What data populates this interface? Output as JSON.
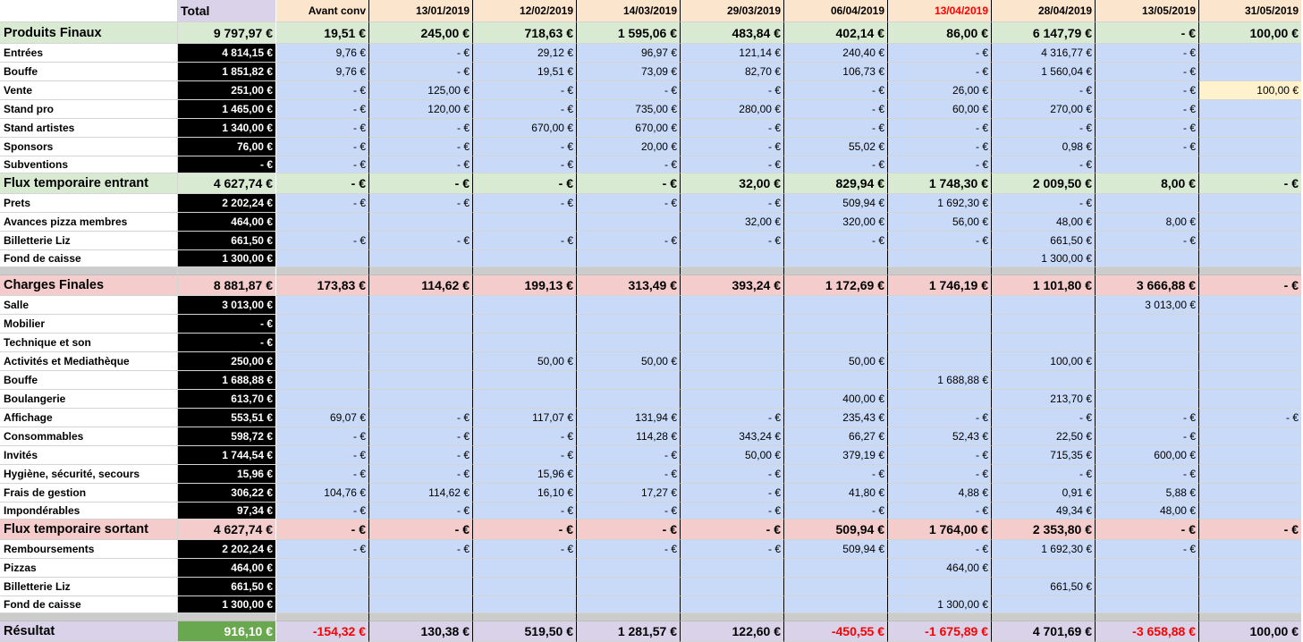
{
  "header": {
    "total_label": "Total",
    "columns": [
      "Avant conv",
      "13/01/2019",
      "12/02/2019",
      "14/03/2019",
      "29/03/2019",
      "06/04/2019",
      "13/04/2019",
      "28/04/2019",
      "13/05/2019",
      "31/05/2019"
    ]
  },
  "rows": [
    {
      "label": "Produits Finaux",
      "total": "9 797,97 €",
      "values": [
        "19,51 €",
        "245,00 €",
        "718,63 €",
        "1 595,06 €",
        "483,84 €",
        "402,14 €",
        "86,00 €",
        "6 147,79 €",
        "- €",
        "100,00 €"
      ]
    },
    {
      "label": "Entrées",
      "total": "4 814,15 €",
      "values": [
        "9,76 €",
        "- €",
        "29,12 €",
        "96,97 €",
        "121,14 €",
        "240,40 €",
        "- €",
        "4 316,77 €",
        "- €",
        ""
      ]
    },
    {
      "label": "Bouffe",
      "total": "1 851,82 €",
      "values": [
        "9,76 €",
        "- €",
        "19,51 €",
        "73,09 €",
        "82,70 €",
        "106,73 €",
        "- €",
        "1 560,04 €",
        "- €",
        ""
      ]
    },
    {
      "label": "Vente",
      "total": "251,00 €",
      "values": [
        "- €",
        "125,00 €",
        "- €",
        "- €",
        "- €",
        "- €",
        "26,00 €",
        "- €",
        "- €",
        "100,00 €"
      ]
    },
    {
      "label": "Stand pro",
      "total": "1 465,00 €",
      "values": [
        "- €",
        "120,00 €",
        "- €",
        "735,00 €",
        "280,00 €",
        "- €",
        "60,00 €",
        "270,00 €",
        "- €",
        ""
      ]
    },
    {
      "label": "Stand artistes",
      "total": "1 340,00 €",
      "values": [
        "- €",
        "- €",
        "670,00 €",
        "670,00 €",
        "- €",
        "- €",
        "- €",
        "- €",
        "- €",
        ""
      ]
    },
    {
      "label": "Sponsors",
      "total": "76,00 €",
      "values": [
        "- €",
        "- €",
        "- €",
        "20,00 €",
        "- €",
        "55,02 €",
        "- €",
        "0,98 €",
        "- €",
        ""
      ]
    },
    {
      "label": "Subventions",
      "total": "- €",
      "values": [
        "- €",
        "- €",
        "- €",
        "- €",
        "- €",
        "- €",
        "- €",
        "- €",
        "",
        ""
      ]
    },
    {
      "label": "Flux temporaire entrant",
      "total": "4 627,74 €",
      "values": [
        "- €",
        "- €",
        "- €",
        "- €",
        "32,00 €",
        "829,94 €",
        "1 748,30 €",
        "2 009,50 €",
        "8,00 €",
        "- €"
      ]
    },
    {
      "label": "Prets",
      "total": "2 202,24 €",
      "values": [
        "- €",
        "- €",
        "- €",
        "- €",
        "- €",
        "509,94 €",
        "1 692,30 €",
        "- €",
        "",
        ""
      ]
    },
    {
      "label": "Avances pizza membres",
      "total": "464,00 €",
      "values": [
        "",
        "",
        "",
        "",
        "32,00 €",
        "320,00 €",
        "56,00 €",
        "48,00 €",
        "8,00 €",
        ""
      ]
    },
    {
      "label": "Billetterie Liz",
      "total": "661,50 €",
      "values": [
        "- €",
        "- €",
        "- €",
        "- €",
        "- €",
        "- €",
        "- €",
        "661,50 €",
        "- €",
        ""
      ]
    },
    {
      "label": "Fond de caisse",
      "total": "1 300,00 €",
      "values": [
        "",
        "",
        "",
        "",
        "",
        "",
        "",
        "1 300,00 €",
        "",
        ""
      ]
    },
    {
      "label": "",
      "total": "",
      "values": [
        "",
        "",
        "",
        "",
        "",
        "",
        "",
        "",
        "",
        ""
      ]
    },
    {
      "label": "Charges Finales",
      "total": "8 881,87 €",
      "values": [
        "173,83 €",
        "114,62 €",
        "199,13 €",
        "313,49 €",
        "393,24 €",
        "1 172,69 €",
        "1 746,19 €",
        "1 101,80 €",
        "3 666,88 €",
        "- €"
      ]
    },
    {
      "label": "Salle",
      "total": "3 013,00 €",
      "values": [
        "",
        "",
        "",
        "",
        "",
        "",
        "",
        "",
        "3 013,00 €",
        ""
      ]
    },
    {
      "label": "Mobilier",
      "total": "- €",
      "values": [
        "",
        "",
        "",
        "",
        "",
        "",
        "",
        "",
        "",
        ""
      ]
    },
    {
      "label": "Technique et son",
      "total": "- €",
      "values": [
        "",
        "",
        "",
        "",
        "",
        "",
        "",
        "",
        "",
        ""
      ]
    },
    {
      "label": "Activités et Mediathèque",
      "total": "250,00 €",
      "values": [
        "",
        "",
        "50,00 €",
        "50,00 €",
        "",
        "50,00 €",
        "",
        "100,00 €",
        "",
        ""
      ]
    },
    {
      "label": "Bouffe",
      "total": "1 688,88 €",
      "values": [
        "",
        "",
        "",
        "",
        "",
        "",
        "1 688,88 €",
        "",
        "",
        ""
      ]
    },
    {
      "label": "Boulangerie",
      "total": "613,70 €",
      "values": [
        "",
        "",
        "",
        "",
        "",
        "400,00 €",
        "",
        "213,70 €",
        "",
        ""
      ]
    },
    {
      "label": "Affichage",
      "total": "553,51 €",
      "values": [
        "69,07 €",
        "- €",
        "117,07 €",
        "131,94 €",
        "- €",
        "235,43 €",
        "- €",
        "- €",
        "- €",
        "- €"
      ]
    },
    {
      "label": "Consommables",
      "total": "598,72 €",
      "values": [
        "- €",
        "- €",
        "- €",
        "114,28 €",
        "343,24 €",
        "66,27 €",
        "52,43 €",
        "22,50 €",
        "- €",
        ""
      ]
    },
    {
      "label": "Invités",
      "total": "1 744,54 €",
      "values": [
        "- €",
        "- €",
        "- €",
        "- €",
        "50,00 €",
        "379,19 €",
        "- €",
        "715,35 €",
        "600,00 €",
        ""
      ]
    },
    {
      "label": "Hygiène, sécurité, secours",
      "total": "15,96 €",
      "values": [
        "- €",
        "- €",
        "15,96 €",
        "- €",
        "- €",
        "- €",
        "- €",
        "- €",
        "- €",
        ""
      ]
    },
    {
      "label": "Frais de gestion",
      "total": "306,22 €",
      "values": [
        "104,76 €",
        "114,62 €",
        "16,10 €",
        "17,27 €",
        "- €",
        "41,80 €",
        "4,88 €",
        "0,91 €",
        "5,88 €",
        ""
      ]
    },
    {
      "label": "Impondérables",
      "total": "97,34 €",
      "values": [
        "- €",
        "- €",
        "- €",
        "- €",
        "- €",
        "- €",
        "- €",
        "49,34 €",
        "48,00 €",
        ""
      ]
    },
    {
      "label": "Flux temporaire sortant",
      "total": "4 627,74 €",
      "values": [
        "- €",
        "- €",
        "- €",
        "- €",
        "- €",
        "509,94 €",
        "1 764,00 €",
        "2 353,80 €",
        "- €",
        "- €"
      ]
    },
    {
      "label": "Remboursements",
      "total": "2 202,24 €",
      "values": [
        "- €",
        "- €",
        "- €",
        "- €",
        "- €",
        "509,94 €",
        "- €",
        "1 692,30 €",
        "- €",
        ""
      ]
    },
    {
      "label": "Pizzas",
      "total": "464,00 €",
      "values": [
        "",
        "",
        "",
        "",
        "",
        "",
        "464,00 €",
        "",
        "",
        ""
      ]
    },
    {
      "label": "Billetterie Liz",
      "total": "661,50 €",
      "values": [
        "",
        "",
        "",
        "",
        "",
        "",
        "",
        "661,50 €",
        "",
        ""
      ]
    },
    {
      "label": "Fond de caisse",
      "total": "1 300,00 €",
      "values": [
        "",
        "",
        "",
        "",
        "",
        "",
        "1 300,00 €",
        "",
        "",
        ""
      ]
    },
    {
      "label": "",
      "total": "",
      "values": [
        "",
        "",
        "",
        "",
        "",
        "",
        "",
        "",
        "",
        ""
      ]
    },
    {
      "label": "Résultat",
      "total": "916,10 €",
      "values": [
        "-154,32 €",
        "130,38 €",
        "519,50 €",
        "1 281,57 €",
        "122,60 €",
        "-450,55 €",
        "-1 675,89 €",
        "4 701,69 €",
        "-3 658,88 €",
        "100,00 €"
      ]
    }
  ],
  "colors": {
    "header_date_red": "#ff0000",
    "negative": "#ff0000",
    "section_green": "#d9ead3",
    "section_pink": "#f4cccc",
    "result": "#d9d2e9",
    "data_blue": "#c9daf8"
  }
}
